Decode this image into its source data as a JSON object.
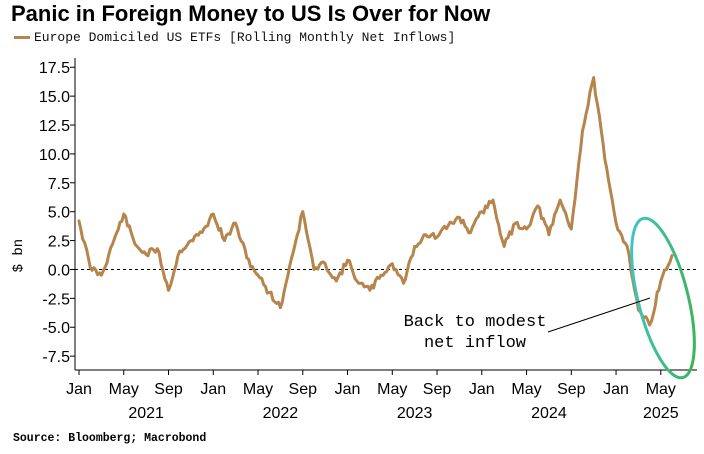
{
  "chart_data": {
    "type": "line",
    "title": "Panic in Foreign Money to US Is Over for Now",
    "ylabel": "$ bn",
    "xlabel": "",
    "ylim": [
      -8.7,
      18.3
    ],
    "yticks": [
      "17.5",
      "15.0",
      "12.5",
      "10.0",
      "7.5",
      "5.0",
      "2.5",
      "0.0",
      "-2.5",
      "-5.0",
      "-7.5"
    ],
    "ytick_values": [
      17.5,
      15,
      12.5,
      10,
      7.5,
      5,
      2.5,
      0,
      -2.5,
      -5,
      -7.5
    ],
    "month_ticks": [
      {
        "label": "Jan",
        "date": "2021-01"
      },
      {
        "label": "May",
        "date": "2021-05"
      },
      {
        "label": "Sep",
        "date": "2021-09"
      },
      {
        "label": "Jan",
        "date": "2022-01"
      },
      {
        "label": "May",
        "date": "2022-05"
      },
      {
        "label": "Sep",
        "date": "2022-09"
      },
      {
        "label": "Jan",
        "date": "2023-01"
      },
      {
        "label": "May",
        "date": "2023-05"
      },
      {
        "label": "Sep",
        "date": "2023-09"
      },
      {
        "label": "Jan",
        "date": "2024-01"
      },
      {
        "label": "May",
        "date": "2024-05"
      },
      {
        "label": "Sep",
        "date": "2024-09"
      },
      {
        "label": "Jan",
        "date": "2025-01"
      },
      {
        "label": "May",
        "date": "2025-05"
      }
    ],
    "year_labels": [
      {
        "label": "2021",
        "date": "2021-07"
      },
      {
        "label": "2022",
        "date": "2022-07"
      },
      {
        "label": "2023",
        "date": "2023-07"
      },
      {
        "label": "2024",
        "date": "2024-07"
      },
      {
        "label": "2025",
        "date": "2025-05"
      }
    ],
    "zero_line": "dashed",
    "grid": false,
    "legend_position": "top-left",
    "series": [
      {
        "name": "Europe Domiciled US ETFs [Rolling Monthly Net Inflows]",
        "color": "#b5854b",
        "x": [
          "2021-01",
          "2021-02",
          "2021-03",
          "2021-04",
          "2021-05",
          "2021-06",
          "2021-07",
          "2021-08",
          "2021-09",
          "2021-10",
          "2021-11",
          "2021-12",
          "2022-01",
          "2022-02",
          "2022-03",
          "2022-04",
          "2022-05",
          "2022-06",
          "2022-07",
          "2022-08",
          "2022-09",
          "2022-10",
          "2022-11",
          "2022-12",
          "2023-01",
          "2023-02",
          "2023-03",
          "2023-04",
          "2023-05",
          "2023-06",
          "2023-07",
          "2023-08",
          "2023-09",
          "2023-10",
          "2023-11",
          "2023-12",
          "2024-01",
          "2024-02",
          "2024-03",
          "2024-04",
          "2024-05",
          "2024-06",
          "2024-07",
          "2024-08",
          "2024-09",
          "2024-10",
          "2024-11",
          "2024-12",
          "2025-01",
          "2025-02",
          "2025-03",
          "2025-04",
          "2025-05",
          "2025-06"
        ],
        "y": [
          4.2,
          0.2,
          -0.5,
          2.2,
          4.8,
          2.2,
          1.3,
          1.8,
          -1.8,
          1.6,
          2.5,
          3.2,
          4.8,
          2.5,
          4.0,
          1.0,
          -0.5,
          -2.0,
          -3.3,
          1.0,
          5.0,
          0.0,
          0.5,
          -1.0,
          0.8,
          -1.2,
          -1.8,
          -0.5,
          0.5,
          -1.2,
          2.0,
          3.0,
          2.8,
          3.8,
          4.5,
          3.2,
          5.0,
          6.0,
          2.0,
          4.0,
          3.5,
          5.5,
          3.0,
          6.0,
          3.5,
          12.0,
          16.6,
          9.5,
          4.0,
          2.0,
          -3.5,
          -4.8,
          -1.0,
          1.2
        ]
      }
    ],
    "annotation": {
      "line1": "Back to modest",
      "line2": "net inflow"
    },
    "highlight_color": "#3cb043"
  },
  "source": "Source: Bloomberg; Macrobond"
}
